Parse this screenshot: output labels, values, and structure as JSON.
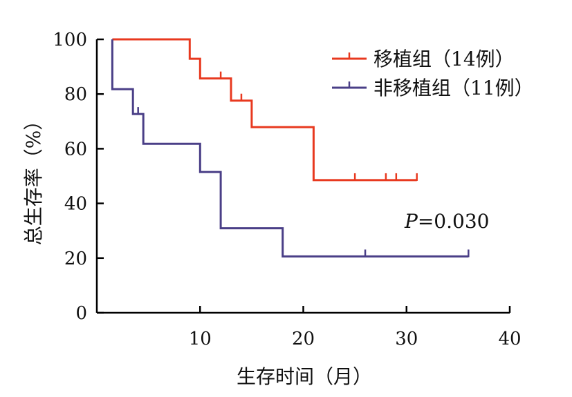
{
  "chart_data": {
    "type": "line",
    "subtype": "kaplan-meier",
    "xlabel": "生存时间（月）",
    "ylabel": "总生存率（%）",
    "xlim": [
      0,
      40
    ],
    "ylim": [
      0,
      100
    ],
    "xticks": [
      10,
      20,
      30,
      40
    ],
    "yticks": [
      0,
      20,
      40,
      60,
      80,
      100
    ],
    "grid": false,
    "legend_position": "top-right",
    "annotation": {
      "italic": "P",
      "rest": "=0.030"
    },
    "series": [
      {
        "name": "移植组（14例）",
        "color": "#e8391f",
        "steps": [
          [
            1.5,
            100
          ],
          [
            9,
            100
          ],
          [
            9,
            92.9
          ],
          [
            10,
            92.9
          ],
          [
            10,
            85.7
          ],
          [
            13,
            85.7
          ],
          [
            13,
            77.6
          ],
          [
            15,
            77.6
          ],
          [
            15,
            67.9
          ],
          [
            21,
            67.9
          ],
          [
            21,
            48.5
          ],
          [
            31,
            48.5
          ]
        ],
        "censored": [
          [
            12,
            85.7
          ],
          [
            14,
            77.6
          ],
          [
            25,
            48.5
          ],
          [
            28,
            48.5
          ],
          [
            29,
            48.5
          ],
          [
            31,
            48.5
          ]
        ]
      },
      {
        "name": "非移植组（11例）",
        "color": "#4a3f87",
        "steps": [
          [
            1.5,
            100
          ],
          [
            1.5,
            81.8
          ],
          [
            3.5,
            81.8
          ],
          [
            3.5,
            72.7
          ],
          [
            4.5,
            72.7
          ],
          [
            4.5,
            61.8
          ],
          [
            10,
            61.8
          ],
          [
            10,
            51.5
          ],
          [
            12,
            51.5
          ],
          [
            12,
            30.9
          ],
          [
            18,
            30.9
          ],
          [
            18,
            20.6
          ],
          [
            36,
            20.6
          ]
        ],
        "censored": [
          [
            4,
            72.7
          ],
          [
            26,
            20.6
          ],
          [
            36,
            20.6
          ]
        ]
      }
    ]
  }
}
